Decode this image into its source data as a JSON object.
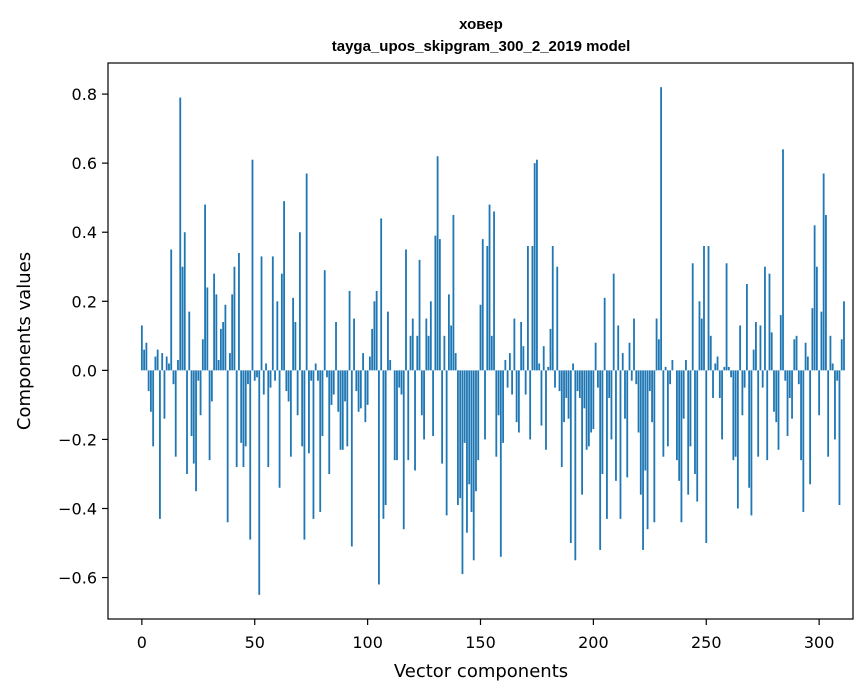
{
  "chart_data": {
    "type": "bar",
    "title_line1": "ховер",
    "title_line2": "tayga_upos_skipgram_300_2_2019 model",
    "xlabel": "Vector components",
    "ylabel": "Components values",
    "xlim": [
      -15,
      315
    ],
    "ylim": [
      -0.72,
      0.89
    ],
    "xticks": [
      0,
      50,
      100,
      150,
      200,
      250,
      300
    ],
    "xtick_labels": [
      "0",
      "50",
      "100",
      "150",
      "200",
      "250",
      "300"
    ],
    "yticks": [
      -0.6,
      -0.4,
      -0.2,
      0.0,
      0.2,
      0.4,
      0.6,
      0.8
    ],
    "ytick_labels": [
      "−0.6",
      "−0.4",
      "−0.2",
      "0.0",
      "0.2",
      "0.4",
      "0.6",
      "0.8"
    ],
    "bar_color": "#1f77b4",
    "values": [
      0.13,
      0.06,
      0.08,
      -0.06,
      -0.12,
      -0.22,
      0.04,
      0.06,
      -0.43,
      0.05,
      -0.14,
      0.04,
      0.02,
      0.35,
      -0.04,
      -0.25,
      0.03,
      0.79,
      0.3,
      0.4,
      -0.3,
      0.17,
      -0.19,
      -0.27,
      -0.35,
      -0.03,
      -0.13,
      0.09,
      0.48,
      0.24,
      -0.26,
      -0.09,
      0.28,
      0.22,
      0.03,
      0.12,
      0.14,
      0.19,
      -0.44,
      0.05,
      0.22,
      0.3,
      -0.28,
      0.34,
      -0.21,
      -0.28,
      -0.22,
      -0.04,
      -0.49,
      0.61,
      -0.03,
      -0.02,
      -0.65,
      0.33,
      -0.07,
      0.02,
      -0.28,
      -0.05,
      0.33,
      -0.03,
      0.2,
      -0.34,
      0.28,
      0.49,
      -0.06,
      -0.09,
      -0.25,
      0.21,
      0.14,
      -0.13,
      0.4,
      -0.22,
      -0.49,
      0.57,
      -0.24,
      -0.03,
      -0.43,
      0.02,
      -0.03,
      -0.41,
      -0.19,
      0.29,
      -0.02,
      -0.3,
      -0.1,
      -0.07,
      0.14,
      -0.12,
      -0.23,
      -0.23,
      -0.09,
      -0.22,
      0.23,
      -0.51,
      0.15,
      -0.06,
      -0.12,
      -0.11,
      0.05,
      -0.15,
      -0.1,
      0.04,
      0.12,
      0.2,
      0.23,
      -0.62,
      0.44,
      -0.43,
      -0.39,
      0.17,
      0.03,
      0.0,
      -0.26,
      -0.26,
      -0.05,
      -0.07,
      -0.46,
      0.35,
      -0.26,
      0.1,
      0.15,
      -0.29,
      0.1,
      0.32,
      -0.13,
      -0.2,
      0.15,
      0.1,
      0.2,
      -0.19,
      0.39,
      0.62,
      0.38,
      -0.27,
      0.1,
      -0.42,
      0.22,
      0.13,
      0.45,
      0.05,
      -0.39,
      -0.37,
      -0.59,
      -0.21,
      -0.47,
      -0.33,
      -0.41,
      -0.55,
      -0.35,
      -0.26,
      0.19,
      0.38,
      -0.2,
      0.36,
      0.48,
      0.1,
      0.46,
      -0.25,
      -0.13,
      -0.54,
      -0.21,
      0.03,
      -0.05,
      0.05,
      -0.07,
      0.15,
      -0.15,
      -0.18,
      0.14,
      0.07,
      -0.07,
      0.36,
      -0.2,
      0.36,
      0.6,
      0.61,
      0.02,
      -0.16,
      0.07,
      -0.23,
      0.01,
      0.12,
      0.36,
      -0.05,
      0.3,
      -0.06,
      -0.28,
      -0.15,
      -0.08,
      -0.14,
      -0.5,
      0.02,
      -0.55,
      -0.06,
      -0.08,
      -0.36,
      -0.11,
      -0.23,
      -0.22,
      -0.18,
      -0.17,
      0.08,
      -0.05,
      -0.52,
      -0.3,
      0.21,
      -0.43,
      -0.08,
      -0.2,
      0.28,
      -0.32,
      0.13,
      -0.43,
      0.05,
      -0.14,
      -0.31,
      0.08,
      -0.03,
      0.15,
      -0.04,
      -0.18,
      -0.36,
      -0.52,
      -0.29,
      -0.46,
      -0.06,
      -0.15,
      -0.44,
      0.15,
      0.09,
      0.82,
      -0.25,
      0.01,
      -0.22,
      -0.04,
      0.03,
      0.0,
      -0.26,
      -0.32,
      -0.44,
      -0.14,
      0.03,
      -0.36,
      -0.22,
      0.31,
      -0.3,
      -0.38,
      0.2,
      0.15,
      0.36,
      -0.5,
      0.36,
      0.1,
      -0.08,
      0.02,
      0.04,
      -0.08,
      -0.2,
      0.01,
      0.31,
      0.01,
      -0.02,
      -0.26,
      -0.25,
      -0.4,
      0.13,
      -0.13,
      -0.05,
      0.25,
      -0.34,
      -0.42,
      0.06,
      0.14,
      -0.25,
      0.13,
      -0.05,
      0.3,
      -0.26,
      0.28,
      0.11,
      -0.12,
      -0.15,
      -0.23,
      0.16,
      0.64,
      -0.03,
      -0.19,
      -0.08,
      -0.14,
      0.09,
      0.1,
      -0.04,
      -0.26,
      -0.41,
      0.08,
      0.04,
      -0.33,
      0.18,
      0.42,
      0.3,
      -0.13,
      0.17,
      0.57,
      0.45,
      -0.25,
      0.1,
      0.02,
      -0.2,
      -0.03,
      -0.39,
      0.09,
      0.2
    ]
  }
}
